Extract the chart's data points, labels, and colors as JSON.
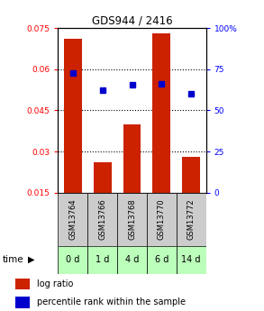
{
  "title": "GDS944 / 2416",
  "categories": [
    "GSM13764",
    "GSM13766",
    "GSM13768",
    "GSM13770",
    "GSM13772"
  ],
  "time_labels": [
    "0 d",
    "1 d",
    "4 d",
    "6 d",
    "14 d"
  ],
  "log_ratio": [
    0.071,
    0.026,
    0.04,
    0.073,
    0.028
  ],
  "percentile_rank": [
    0.725,
    0.625,
    0.655,
    0.66,
    0.6
  ],
  "bar_color": "#cc2200",
  "marker_color": "#0000cc",
  "ylim_left": [
    0.015,
    0.075
  ],
  "ylim_right": [
    0.0,
    1.0
  ],
  "yticks_left": [
    0.015,
    0.03,
    0.045,
    0.06,
    0.075
  ],
  "ytick_labels_left": [
    "0.015",
    "0.03",
    "0.045",
    "0.06",
    "0.075"
  ],
  "yticks_right_vals": [
    0.0,
    0.25,
    0.5,
    0.75,
    1.0
  ],
  "ytick_labels_right": [
    "0",
    "25",
    "50",
    "75",
    "100%"
  ],
  "gridline_y": [
    0.03,
    0.045,
    0.06
  ],
  "bar_width": 0.6,
  "time_row_color": "#bbffbb",
  "gsm_row_color": "#cccccc",
  "legend_bar_label": "log ratio",
  "legend_marker_label": "percentile rank within the sample",
  "time_label": "time"
}
